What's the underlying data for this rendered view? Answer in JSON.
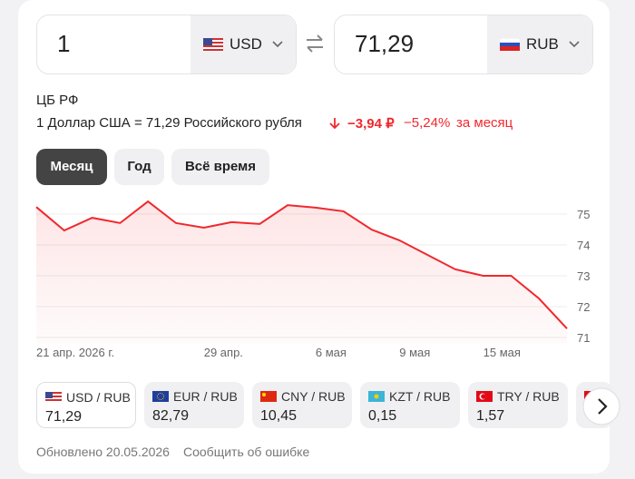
{
  "converter": {
    "from": {
      "amount": "1",
      "currency": "USD"
    },
    "to": {
      "amount": "71,29",
      "currency": "RUB"
    }
  },
  "rate": {
    "source": "ЦБ РФ",
    "text": "1 Доллар США = 71,29 Российского рубля",
    "change": "−3,94 ₽",
    "change_pct": "−5,24%",
    "period": "за месяц"
  },
  "periods": [
    "Месяц",
    "Год",
    "Всё время"
  ],
  "chart": {
    "type": "line",
    "categories": [
      "21 апр. 2026 г.",
      null,
      null,
      null,
      null,
      null,
      "29 апр.",
      null,
      null,
      null,
      "6 мая",
      null,
      null,
      "9 мая",
      null,
      null,
      "15 мая",
      null,
      null,
      null
    ],
    "values": [
      75.23,
      74.47,
      74.88,
      74.71,
      75.41,
      74.71,
      74.56,
      74.74,
      74.68,
      75.29,
      75.21,
      75.09,
      74.5,
      74.15,
      73.68,
      73.21,
      73.0,
      73.0,
      72.26,
      71.29
    ],
    "color": "#f0282d",
    "ylim": [
      70.8,
      75.6
    ],
    "yticks": [
      71,
      72,
      73,
      74,
      75
    ],
    "grid": true
  },
  "pairs": [
    {
      "name": "USD / RUB",
      "value": "71,29"
    },
    {
      "name": "EUR / RUB",
      "value": "82,79"
    },
    {
      "name": "CNY / RUB",
      "value": "10,45"
    },
    {
      "name": "KZT / RUB",
      "value": "0,15"
    },
    {
      "name": "TRY / RUB",
      "value": "1,57"
    }
  ],
  "footer": {
    "updated": "Обновлено 20.05.2026",
    "report": "Сообщить об ошибке"
  }
}
